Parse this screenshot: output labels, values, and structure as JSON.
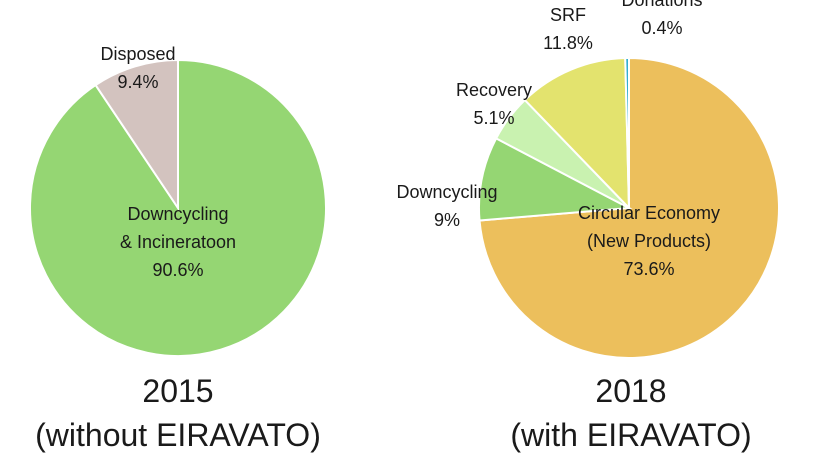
{
  "chart_data": [
    {
      "type": "pie",
      "caption_line1": "2015",
      "caption_line2": "(without EIRAVATO)",
      "slices": [
        {
          "name_lines": [
            "Downcycling",
            "& Incineratoon"
          ],
          "value": 90.6,
          "value_label": "90.6%",
          "color": "#95d673"
        },
        {
          "name_lines": [
            "Disposed"
          ],
          "value": 9.4,
          "value_label": "9.4%",
          "color": "#d3c3bf"
        }
      ]
    },
    {
      "type": "pie",
      "caption_line1": "2018",
      "caption_line2": "(with EIRAVATO)",
      "slices": [
        {
          "name_lines": [
            "Circular Economy",
            "(New Products)"
          ],
          "value": 73.6,
          "value_label": "73.6%",
          "color": "#ecbf5c"
        },
        {
          "name_lines": [
            "Downcycling"
          ],
          "value": 9,
          "value_label": "9%",
          "color": "#95d673"
        },
        {
          "name_lines": [
            "Recovery"
          ],
          "value": 5.1,
          "value_label": "5.1%",
          "color": "#c9f2b0"
        },
        {
          "name_lines": [
            "SRF"
          ],
          "value": 11.8,
          "value_label": "11.8%",
          "color": "#e3e36e"
        },
        {
          "name_lines": [
            "Donations"
          ],
          "value": 0.4,
          "value_label": "0.4%",
          "color": "#33aed1"
        }
      ]
    }
  ]
}
